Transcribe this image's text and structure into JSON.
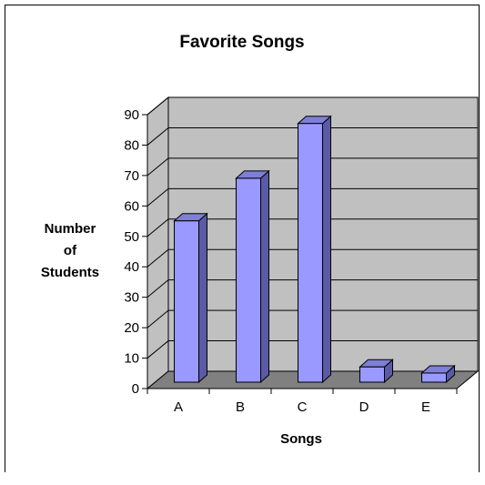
{
  "chart_data": {
    "type": "bar",
    "title": "Favorite Songs",
    "xlabel": "Songs",
    "ylabel_lines": [
      "Number",
      "of",
      "Students"
    ],
    "categories": [
      "A",
      "B",
      "C",
      "D",
      "E"
    ],
    "values": [
      53,
      67,
      85,
      5,
      3
    ],
    "ylim": [
      0,
      90
    ],
    "yticks": [
      0,
      10,
      20,
      30,
      40,
      50,
      60,
      70,
      80,
      90
    ],
    "grid": true,
    "legend": "none",
    "colors": {
      "bar_front": "#9999ff",
      "bar_side": "#5a5aa6",
      "bar_top": "#7f7fd6",
      "wall": "#c0c0c0",
      "floor": "#808080",
      "grid": "#000000"
    }
  }
}
